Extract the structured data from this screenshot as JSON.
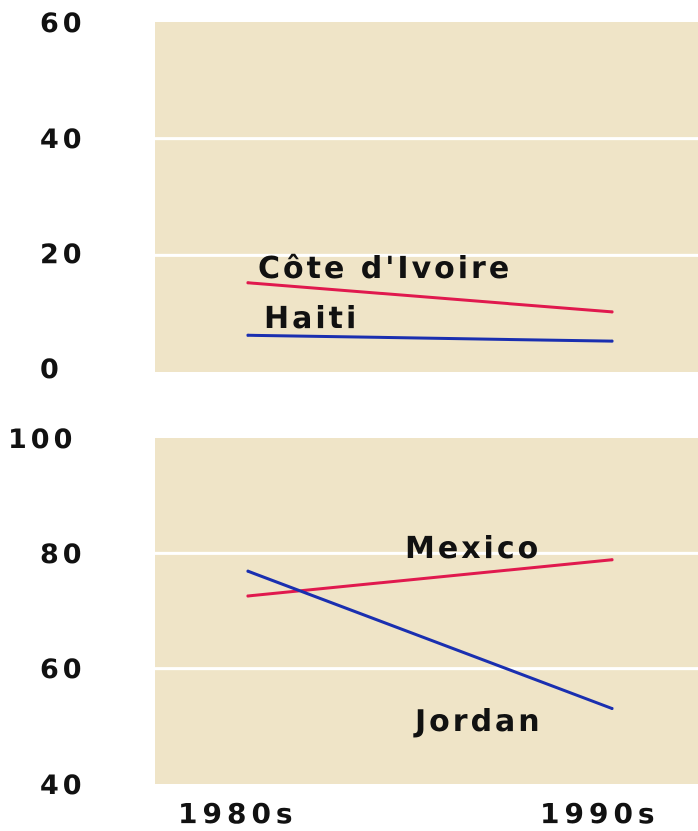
{
  "chart_data": [
    {
      "type": "line",
      "categories": [
        "1980s",
        "1990s"
      ],
      "ylim": [
        0,
        60
      ],
      "yticks": [
        0,
        20,
        40,
        60
      ],
      "grid": true,
      "series": [
        {
          "name": "Côte d'Ivoire",
          "values": [
            15.3,
            10.3
          ],
          "color": "#e0194e"
        },
        {
          "name": "Haiti",
          "values": [
            6.3,
            5.3
          ],
          "color": "#1a2fb0"
        }
      ]
    },
    {
      "type": "line",
      "categories": [
        "1980s",
        "1990s"
      ],
      "ylim": [
        40,
        100
      ],
      "yticks": [
        40,
        60,
        80,
        100
      ],
      "grid": true,
      "series": [
        {
          "name": "Mexico",
          "values": [
            72.6,
            78.9
          ],
          "color": "#e0194e"
        },
        {
          "name": "Jordan",
          "values": [
            76.9,
            53.1
          ],
          "color": "#1a2fb0"
        }
      ]
    }
  ],
  "colors": {
    "plot_background": "#efe4c7",
    "gridline": "#ffffff"
  }
}
